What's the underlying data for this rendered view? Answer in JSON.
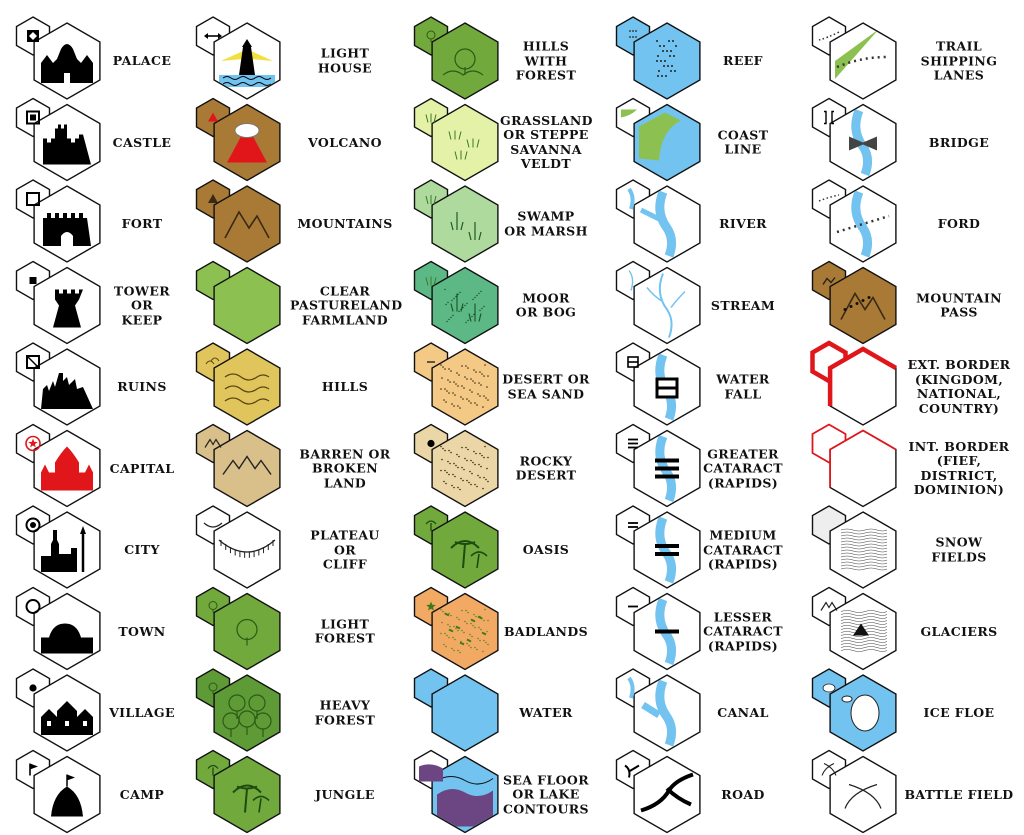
{
  "legend": {
    "columns": [
      {
        "items": [
          {
            "label": "PALACE",
            "icon": "palace-icon",
            "small": "diamond-in-square"
          },
          {
            "label": "CASTLE",
            "icon": "castle-icon",
            "small": "square-in-square"
          },
          {
            "label": "FORT",
            "icon": "fort-icon",
            "small": "open-square"
          },
          {
            "label": "TOWER\nOR\nKEEP",
            "icon": "tower-icon",
            "small": "small-square"
          },
          {
            "label": "RUINS",
            "icon": "ruins-icon",
            "small": "crossed-square"
          },
          {
            "label": "CAPITAL",
            "icon": "capital-icon",
            "small": "red-star-circle"
          },
          {
            "label": "CITY",
            "icon": "city-icon",
            "small": "dot-in-circle"
          },
          {
            "label": "TOWN",
            "icon": "town-icon",
            "small": "open-circle"
          },
          {
            "label": "VILLAGE",
            "icon": "village-icon",
            "small": "dot"
          },
          {
            "label": "CAMP",
            "icon": "camp-icon",
            "small": "flag"
          }
        ]
      },
      {
        "items": [
          {
            "label": "LIGHT\nHOUSE",
            "icon": "lighthouse-icon",
            "small": "double-arrow"
          },
          {
            "label": "VOLCANO",
            "icon": "volcano-icon",
            "small": "red-triangle"
          },
          {
            "label": "MOUNTAINS",
            "icon": "mountains-icon",
            "small": "dark-triangle"
          },
          {
            "label": "CLEAR\nPASTURELAND\nFARMLAND",
            "icon": "clear-terrain-icon",
            "small": "plain"
          },
          {
            "label": "HILLS",
            "icon": "hills-icon",
            "small": "hill-lines"
          },
          {
            "label": "BARREN OR\nBROKEN\nLAND",
            "icon": "barren-icon",
            "small": "peaks"
          },
          {
            "label": "PLATEAU\nOR\nCLIFF",
            "icon": "plateau-icon",
            "small": "cliff-edge"
          },
          {
            "label": "LIGHT\nFOREST",
            "icon": "light-forest-icon",
            "small": "tree"
          },
          {
            "label": "HEAVY\nFOREST",
            "icon": "heavy-forest-icon",
            "small": "trees"
          },
          {
            "label": "JUNGLE",
            "icon": "jungle-icon",
            "small": "palm"
          }
        ]
      },
      {
        "items": [
          {
            "label": "HILLS\nWITH\nFOREST",
            "icon": "hills-forest-icon",
            "small": "hill-tree"
          },
          {
            "label": "GRASSLAND\nOR STEPPE\nSAVANNA\nVELDT",
            "icon": "grassland-icon",
            "small": "grass"
          },
          {
            "label": "SWAMP\nOR MARSH",
            "icon": "swamp-icon",
            "small": "reeds"
          },
          {
            "label": "MOOR\nOR BOG",
            "icon": "moor-icon",
            "small": "reeds"
          },
          {
            "label": "DESERT OR\nSEA SAND",
            "icon": "desert-icon",
            "small": "dash"
          },
          {
            "label": "ROCKY\nDESERT",
            "icon": "rocky-desert-icon",
            "small": "dot"
          },
          {
            "label": "OASIS",
            "icon": "oasis-icon",
            "small": "palm"
          },
          {
            "label": "BADLANDS",
            "icon": "badlands-icon",
            "small": "splat"
          },
          {
            "label": "WATER",
            "icon": "water-icon",
            "small": "plain"
          },
          {
            "label": "SEA FLOOR\nOR LAKE\nCONTOURS",
            "icon": "contours-icon",
            "small": "contours"
          }
        ]
      },
      {
        "items": [
          {
            "label": "REEF",
            "icon": "reef-icon",
            "small": "dots"
          },
          {
            "label": "COAST\nLINE",
            "icon": "coastline-icon",
            "small": "coast"
          },
          {
            "label": "RIVER",
            "icon": "river-icon",
            "small": "river"
          },
          {
            "label": "STREAM",
            "icon": "stream-icon",
            "small": "stream"
          },
          {
            "label": "WATER\nFALL",
            "icon": "waterfall-icon",
            "small": "box-bar"
          },
          {
            "label": "GREATER\nCATARACT\n(RAPIDS)",
            "icon": "greater-cataract-icon",
            "small": "three-bars"
          },
          {
            "label": "MEDIUM\nCATARACT\n(RAPIDS)",
            "icon": "medium-cataract-icon",
            "small": "two-bars"
          },
          {
            "label": "LESSER\nCATARACT\n(RAPIDS)",
            "icon": "lesser-cataract-icon",
            "small": "one-bar"
          },
          {
            "label": "CANAL",
            "icon": "canal-icon",
            "small": "canal"
          },
          {
            "label": "ROAD",
            "icon": "road-icon",
            "small": "road"
          }
        ]
      },
      {
        "items": [
          {
            "label": "TRAIL\nSHIPPING LANES",
            "icon": "trail-icon",
            "small": "trail"
          },
          {
            "label": "BRIDGE",
            "icon": "bridge-icon",
            "small": "brackets"
          },
          {
            "label": "FORD",
            "icon": "ford-icon",
            "small": "ford"
          },
          {
            "label": "MOUNTAIN\nPASS",
            "icon": "mountain-pass-icon",
            "small": "pass"
          },
          {
            "label": "EXT. BORDER\n(KINGDOM,\nNATIONAL,\nCOUNTRY)",
            "icon": "external-border-icon",
            "small": "border-thick"
          },
          {
            "label": "INT. BORDER\n(FIEF,\nDISTRICT,\nDOMINION)",
            "icon": "internal-border-icon",
            "small": "border-thin"
          },
          {
            "label": "SNOW\nFIELDS",
            "icon": "snow-fields-icon",
            "small": "plain"
          },
          {
            "label": "GLACIERS",
            "icon": "glaciers-icon",
            "small": "peaks"
          },
          {
            "label": "ICE FLOE",
            "icon": "ice-floe-icon",
            "small": "floes"
          },
          {
            "label": "BATTLE FIELD",
            "icon": "battlefield-icon",
            "small": "swords"
          }
        ]
      }
    ]
  },
  "colors": {
    "outline": "#111111",
    "black": "#000000",
    "red": "#e0161b",
    "white": "#ffffff",
    "hill_yellow": "#dfc55b",
    "mountain_brown": "#a87a36",
    "barren_tan": "#d9c08a",
    "clear_green": "#8cc152",
    "forest_green": "#71a93c",
    "heavy_green": "#5e9a35",
    "grass_pale": "#e4f2a8",
    "swamp_green": "#aedb9d",
    "moor_green": "#5cb985",
    "desert_sand": "#f4c986",
    "rocky_tan": "#ead6a6",
    "badlands_orange": "#f2a964",
    "water_blue": "#73c3f0",
    "contour_purple": "#6b4683",
    "lighthouse_yellow": "#f2df40",
    "snow_white": "#f4f4f4"
  }
}
